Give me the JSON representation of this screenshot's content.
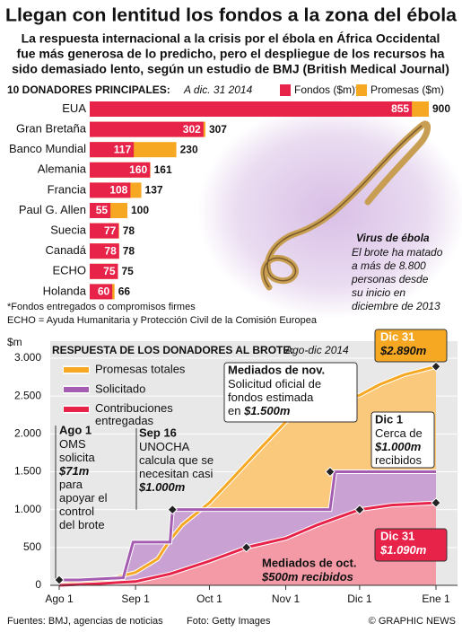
{
  "title": "Llegan con lentitud los fondos a la zona del ébola",
  "subtitle": [
    "La respuesta internacional a la crisis por el ébola en África Occidental",
    "fue más generosa de lo predicho, pero el despliegue de los recursos ha",
    "sido demasiado lento, según un estudio de BMJ (British Medical Journal)"
  ],
  "photo_caption": {
    "title": "Virus de ébola",
    "lines": [
      "El brote ha matado",
      "a más de 8.800",
      "personas desde",
      "su inicio en",
      "diciembre de 2013"
    ]
  },
  "footer": {
    "sources": "Fuentes: BMJ, agencias de noticias",
    "photo": "Foto: Getty Images",
    "credit": "© GRAPHIC NEWS"
  },
  "chart_data": [
    {
      "type": "hbar",
      "title": "10 Donadores Principales:",
      "subtitle": "A dic. 31 2014",
      "categories": [
        "EUA",
        "Gran Bretaña",
        "Banco Mundial",
        "Alemania",
        "Francia",
        "Paul G. Allen",
        "Suecia",
        "Canadá",
        "ECHO",
        "Holanda"
      ],
      "series": [
        {
          "name": "Fondos ($m)*",
          "color": "#e8234a",
          "values": [
            855,
            302,
            117,
            160,
            108,
            55,
            77,
            78,
            75,
            60
          ]
        },
        {
          "name": "Promesas ($m)",
          "color": "#f7a823",
          "values": [
            900,
            307,
            230,
            161,
            137,
            100,
            78,
            78,
            75,
            66
          ]
        }
      ],
      "notes": [
        "*Fondos entregados o compromisos firmes",
        "ECHO = Ayuda Humanitaria y Protección Civil de la Comisión Europea"
      ]
    },
    {
      "type": "area",
      "title": "Respuesta de los Donadores al Brote:",
      "subtitle": "Ago-dic 2014",
      "ylabel": "$m",
      "xlim": [
        0,
        153
      ],
      "xticks": [
        {
          "value": 0,
          "label": "Ago 1"
        },
        {
          "value": 31,
          "label": "Sep 1"
        },
        {
          "value": 61,
          "label": "Oct 1"
        },
        {
          "value": 92,
          "label": "Nov 1"
        },
        {
          "value": 122,
          "label": "Dic 1"
        },
        {
          "value": 153,
          "label": "Ene 1"
        }
      ],
      "ylim": [
        0,
        3000
      ],
      "yticks": [
        0,
        500,
        {
          "value": 1000,
          "label": "1.000"
        },
        {
          "value": 1500,
          "label": "1.500"
        },
        {
          "value": 2000,
          "label": "2.000"
        },
        {
          "value": 2500,
          "label": "2.500"
        },
        {
          "value": 3000,
          "label": "3.000"
        }
      ],
      "grid": true,
      "series": [
        {
          "name": "Promesas totales",
          "color": "#f7a823",
          "fill": "#fbc97c",
          "x": [
            0,
            10,
            20,
            31,
            40,
            45,
            50,
            61,
            70,
            80,
            92,
            100,
            110,
            122,
            130,
            140,
            153
          ],
          "values": [
            10,
            40,
            80,
            170,
            350,
            600,
            800,
            1090,
            1400,
            1750,
            2160,
            2300,
            2420,
            2510,
            2650,
            2780,
            2890
          ]
        },
        {
          "name": "Solicitado",
          "color": "#a45db0",
          "fill": "#c9a1d2",
          "x": [
            0,
            8,
            26,
            30,
            45,
            46,
            110,
            112,
            153
          ],
          "values": [
            71,
            71,
            100,
            570,
            570,
            1000,
            1000,
            1500,
            1500
          ]
        },
        {
          "name": "Contribuciones entregadas",
          "color": "#e8234a",
          "fill": "#f39aa6",
          "x": [
            0,
            15,
            31,
            45,
            61,
            76,
            92,
            105,
            122,
            135,
            153
          ],
          "values": [
            0,
            20,
            50,
            150,
            320,
            500,
            620,
            800,
            1000,
            1060,
            1090
          ]
        }
      ],
      "annotations": [
        {
          "title": "Ago 1",
          "lines": [
            "OMS",
            "solicita",
            "$71m",
            "para",
            "apoyar el",
            "control",
            "del brote"
          ],
          "point": [
            0,
            71
          ]
        },
        {
          "title": "Sep 16",
          "lines": [
            "UNOCHA",
            "calcula que se",
            "necesitan casi",
            "$1.000m"
          ],
          "point": [
            46,
            1000
          ]
        },
        {
          "title": "Mediados de nov.",
          "lines": [
            "Solicitud oficial de",
            "fondos estimada",
            "en $1.500m"
          ],
          "point": [
            110,
            1500
          ]
        },
        {
          "title": "Dic 1",
          "lines": [
            "Cerca de",
            "$1.000m",
            "recibidos"
          ],
          "point": [
            122,
            1000
          ]
        },
        {
          "title": "Dic 31",
          "lines": [
            "$2.890m"
          ],
          "point": [
            153,
            2890
          ]
        },
        {
          "title": "Dic 31",
          "lines": [
            "$1.090m"
          ],
          "point": [
            153,
            1090
          ]
        },
        {
          "title": "Mediados de oct.",
          "lines": [
            "$500m recibidos"
          ],
          "point": [
            76,
            500
          ]
        }
      ]
    }
  ]
}
